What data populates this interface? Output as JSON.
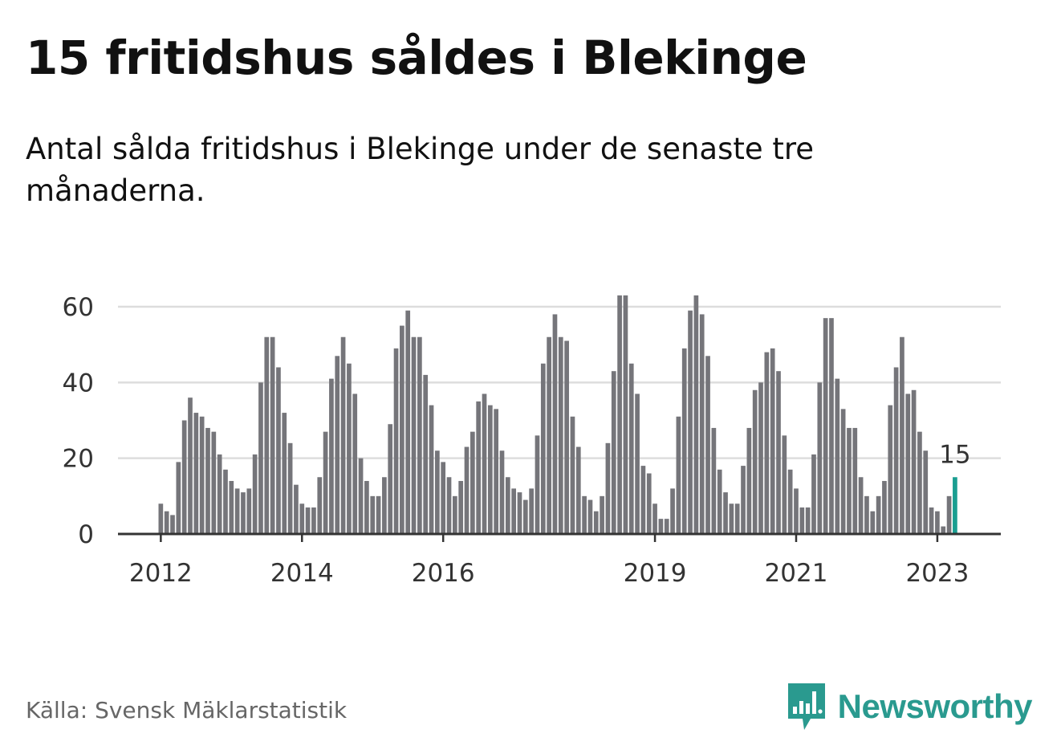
{
  "title": "15 fritidshus såldes i Blekinge",
  "subtitle": "Antal sålda fritidshus i Blekinge under de senaste tre månaderna.",
  "source": "Källa: Svensk Mäklarstatistik",
  "brand": {
    "name": "Newsworthy",
    "logo_icon": "bar-chart-speech-bubble-icon",
    "color": "#2a9a8f"
  },
  "colors": {
    "bar": "#75757a",
    "highlight": "#1a9e91",
    "grid": "#dddddd",
    "axis": "#333333"
  },
  "chart_data": {
    "type": "bar",
    "ylim": [
      0,
      60
    ],
    "yticks": [
      0,
      20,
      40,
      60
    ],
    "grid": true,
    "xticks": [
      "2012",
      "2014",
      "2016",
      "2019",
      "2021",
      "2023"
    ],
    "highlight_label": "15",
    "series": [
      {
        "values": [
          8,
          6,
          5,
          19,
          30,
          36,
          32,
          31,
          28,
          27,
          21,
          17,
          14,
          12,
          11,
          12,
          21,
          40,
          52,
          52,
          44,
          32,
          24,
          13,
          8,
          7,
          7,
          15,
          27,
          41,
          47,
          52,
          45,
          37,
          20,
          14,
          10,
          10,
          15,
          29,
          49,
          55,
          59,
          52,
          52,
          42,
          34,
          22,
          19,
          15,
          10,
          14,
          23,
          27,
          35,
          37,
          34,
          33,
          22,
          15,
          12,
          11,
          9,
          12,
          26,
          45,
          52,
          58,
          52,
          51,
          31,
          23,
          10,
          9,
          6,
          10,
          24,
          43,
          63,
          63,
          45,
          37,
          18,
          16,
          8,
          4,
          4,
          12,
          31,
          49,
          59,
          63,
          58,
          47,
          28,
          17,
          11,
          8,
          8,
          18,
          28,
          38,
          40,
          48,
          49,
          43,
          26,
          17,
          12,
          7,
          7,
          21,
          40,
          57,
          57,
          41,
          33,
          28,
          28,
          15,
          10,
          6,
          10,
          14,
          34,
          44,
          52,
          37,
          38,
          27,
          22,
          7,
          6,
          2,
          10,
          15
        ]
      }
    ]
  }
}
